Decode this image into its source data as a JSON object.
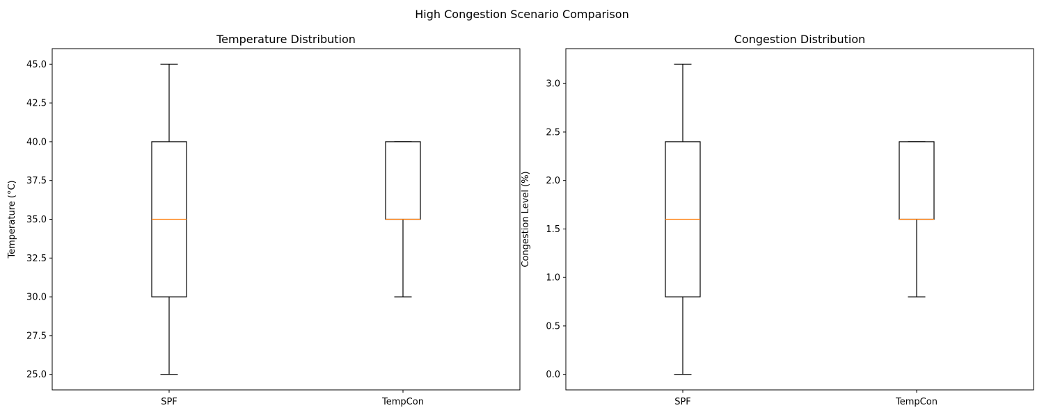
{
  "figure": {
    "suptitle": "High Congestion Scenario Comparison",
    "colors": {
      "box": "#000000",
      "median": "#ff7f0e",
      "background": "#ffffff"
    }
  },
  "chart_data": [
    {
      "type": "box",
      "title": "Temperature Distribution",
      "xlabel": "",
      "ylabel": "Temperature (°C)",
      "categories": [
        "SPF",
        "TempCon"
      ],
      "ylim": [
        24.0,
        46.0
      ],
      "yticks": [
        25.0,
        27.5,
        30.0,
        32.5,
        35.0,
        37.5,
        40.0,
        42.5,
        45.0
      ],
      "ytick_labels": [
        "25.0",
        "27.5",
        "30.0",
        "32.5",
        "35.0",
        "37.5",
        "40.0",
        "42.5",
        "45.0"
      ],
      "boxes": [
        {
          "category": "SPF",
          "whisker_low": 25.0,
          "q1": 30.0,
          "median": 35.0,
          "q3": 40.0,
          "whisker_high": 45.0
        },
        {
          "category": "TempCon",
          "whisker_low": 30.0,
          "q1": 35.0,
          "median": 35.0,
          "q3": 40.0,
          "whisker_high": 40.0
        }
      ],
      "grid": false
    },
    {
      "type": "box",
      "title": "Congestion Distribution",
      "xlabel": "",
      "ylabel": "Congestion Level (%)",
      "categories": [
        "SPF",
        "TempCon"
      ],
      "ylim": [
        -0.16,
        3.36
      ],
      "yticks": [
        0.0,
        0.5,
        1.0,
        1.5,
        2.0,
        2.5,
        3.0
      ],
      "ytick_labels": [
        "0.0",
        "0.5",
        "1.0",
        "1.5",
        "2.0",
        "2.5",
        "3.0"
      ],
      "boxes": [
        {
          "category": "SPF",
          "whisker_low": 0.0,
          "q1": 0.8,
          "median": 1.6,
          "q3": 2.4,
          "whisker_high": 3.2
        },
        {
          "category": "TempCon",
          "whisker_low": 0.8,
          "q1": 1.6,
          "median": 1.6,
          "q3": 2.4,
          "whisker_high": 2.4
        }
      ],
      "grid": false
    }
  ]
}
